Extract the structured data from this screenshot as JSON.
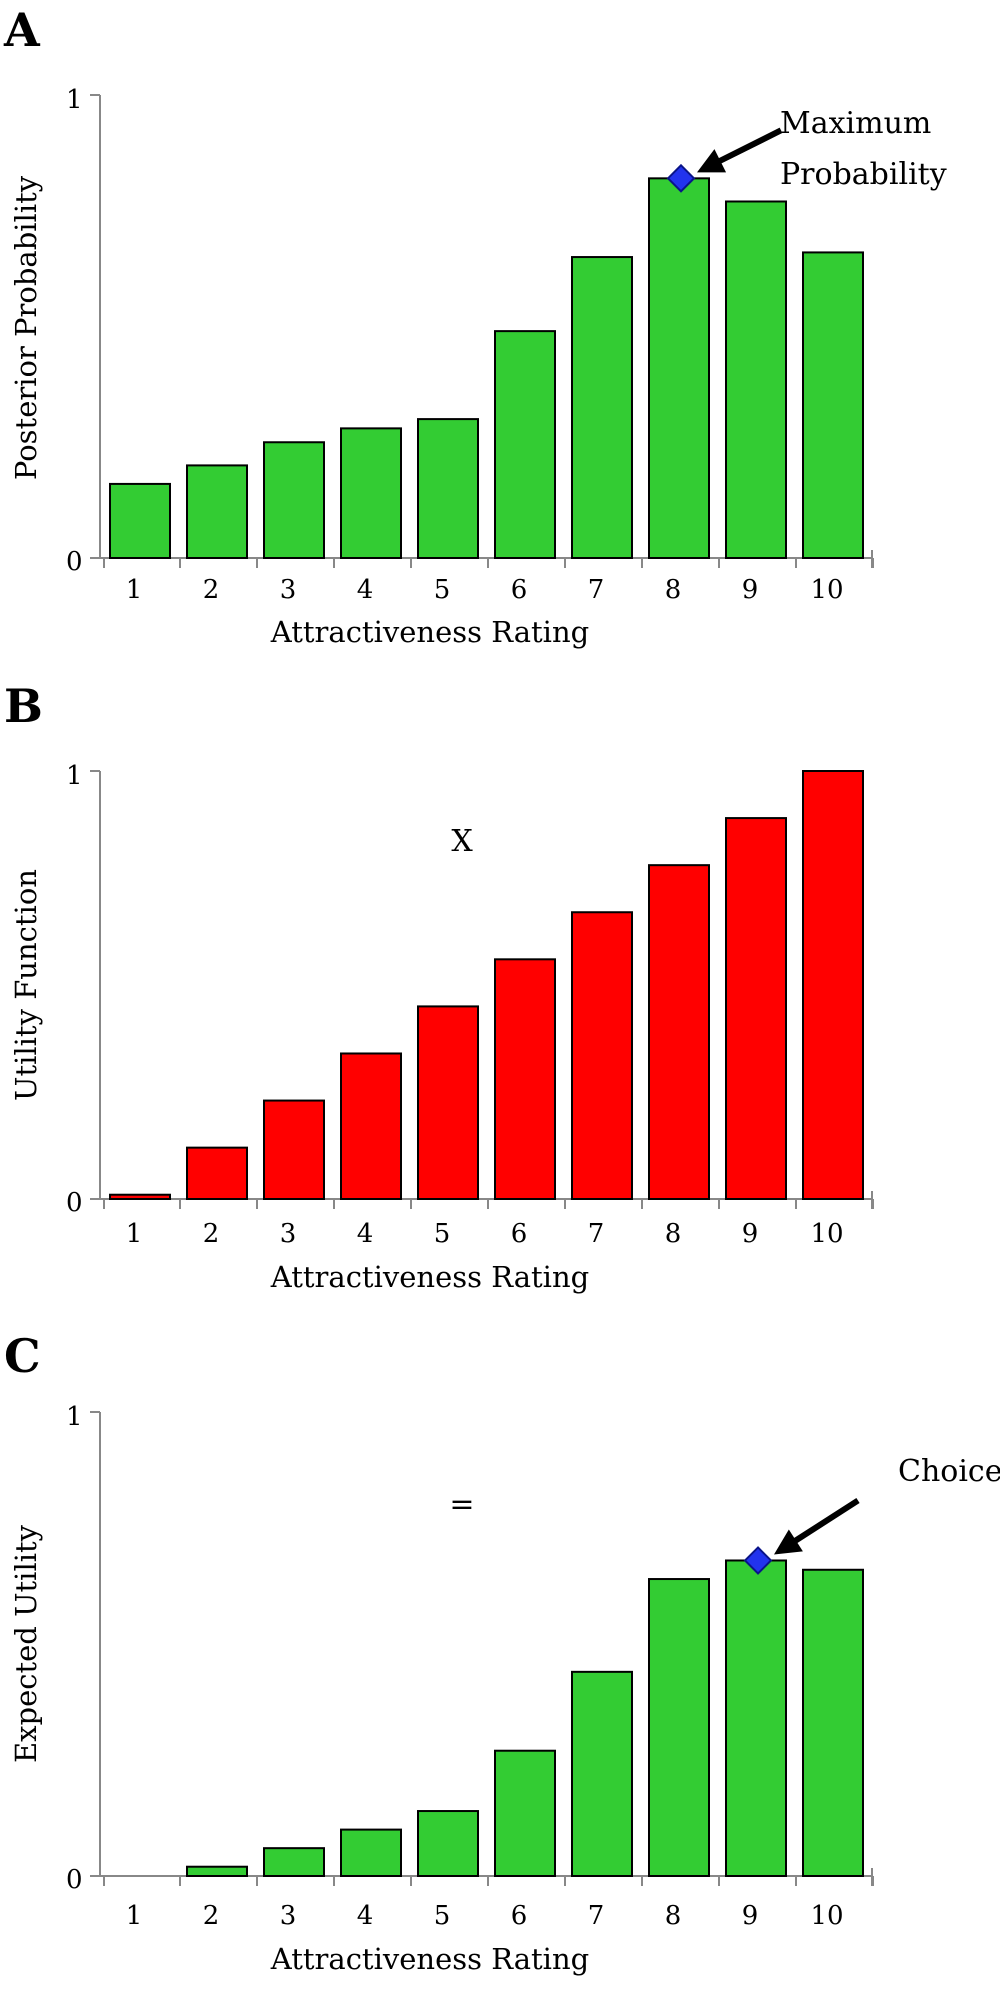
{
  "chart_data": [
    {
      "type": "bar",
      "panel": "A",
      "ylabel": "Posterior Probability",
      "xlabel": "Attractiveness Rating",
      "categories": [
        "1",
        "2",
        "3",
        "4",
        "5",
        "6",
        "7",
        "8",
        "9",
        "10"
      ],
      "values": [
        0.16,
        0.2,
        0.25,
        0.28,
        0.3,
        0.49,
        0.65,
        0.82,
        0.77,
        0.66
      ],
      "ylim": [
        0,
        1
      ],
      "ytick_labels": [
        "0",
        "1"
      ],
      "bar_color": "#33cc33",
      "annotation": {
        "lines": [
          "Maximum",
          "Probability"
        ],
        "category_index": 7
      },
      "operator": ""
    },
    {
      "type": "bar",
      "panel": "B",
      "ylabel": "Utility Function",
      "xlabel": "Attractiveness Rating",
      "categories": [
        "1",
        "2",
        "3",
        "4",
        "5",
        "6",
        "7",
        "8",
        "9",
        "10"
      ],
      "values": [
        0.01,
        0.12,
        0.23,
        0.34,
        0.45,
        0.56,
        0.67,
        0.78,
        0.89,
        1.0
      ],
      "ylim": [
        0,
        1
      ],
      "ytick_labels": [
        "0",
        "1"
      ],
      "bar_color": "#ff0000",
      "annotation": null,
      "operator": "X"
    },
    {
      "type": "bar",
      "panel": "C",
      "ylabel": "Expected Utility",
      "xlabel": "Attractiveness Rating",
      "categories": [
        "1",
        "2",
        "3",
        "4",
        "5",
        "6",
        "7",
        "8",
        "9",
        "10"
      ],
      "values": [
        0.0,
        0.02,
        0.06,
        0.1,
        0.14,
        0.27,
        0.44,
        0.64,
        0.68,
        0.66
      ],
      "ylim": [
        0,
        1
      ],
      "ytick_labels": [
        "0",
        "1"
      ],
      "bar_color": "#33cc33",
      "annotation": {
        "lines": [
          "Choice"
        ],
        "category_index": 8
      },
      "operator": "="
    }
  ],
  "colors": {
    "marker": "#2233ee",
    "axis": "#888888"
  }
}
